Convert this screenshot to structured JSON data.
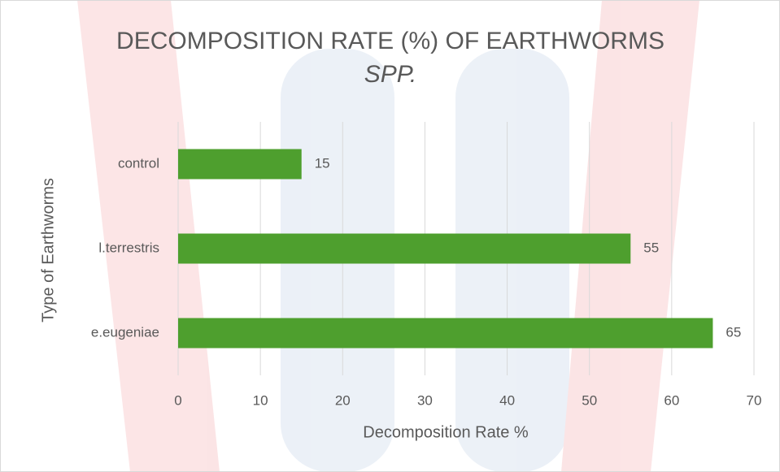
{
  "chart_data": {
    "type": "bar",
    "orientation": "horizontal",
    "title": [
      "DECOMPOSITION RATE (%) OF EARTHWORMS",
      "SPP."
    ],
    "x_label": "Decomposition Rate %",
    "y_label": "Type of Earthworms",
    "categories": [
      "control",
      "l.terrestris",
      "e.eugeniae"
    ],
    "values": [
      15,
      55,
      65
    ],
    "color": "#4e9f2e",
    "xlim": [
      0,
      70
    ],
    "xticks": [
      0,
      10,
      20,
      30,
      40,
      50,
      60,
      70
    ],
    "grid": true
  }
}
